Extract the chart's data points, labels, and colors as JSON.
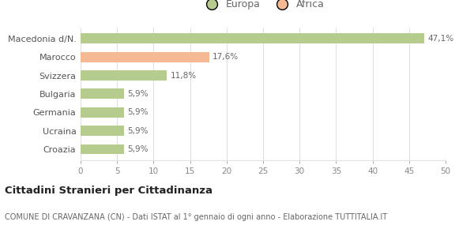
{
  "categories": [
    "Croazia",
    "Ucraina",
    "Germania",
    "Bulgaria",
    "Svizzera",
    "Marocco",
    "Macedonia d/N."
  ],
  "values": [
    5.9,
    5.9,
    5.9,
    5.9,
    11.8,
    17.6,
    47.1
  ],
  "labels": [
    "5,9%",
    "5,9%",
    "5,9%",
    "5,9%",
    "11,8%",
    "17,6%",
    "47,1%"
  ],
  "colors": [
    "#b5cc8e",
    "#b5cc8e",
    "#b5cc8e",
    "#b5cc8e",
    "#b5cc8e",
    "#f5b993",
    "#b5cc8e"
  ],
  "legend": [
    {
      "label": "Europa",
      "color": "#b5cc8e"
    },
    {
      "label": "Africa",
      "color": "#f5b993"
    }
  ],
  "xlim": [
    0,
    50
  ],
  "xticks": [
    0,
    5,
    10,
    15,
    20,
    25,
    30,
    35,
    40,
    45,
    50
  ],
  "title1": "Cittadini Stranieri per Cittadinanza",
  "title2": "COMUNE DI CRAVANZANA (CN) - Dati ISTAT al 1° gennaio di ogni anno - Elaborazione TUTTITALIA.IT",
  "background_color": "#ffffff",
  "bar_edge_color": "none",
  "grid_color": "#e0e0e0"
}
